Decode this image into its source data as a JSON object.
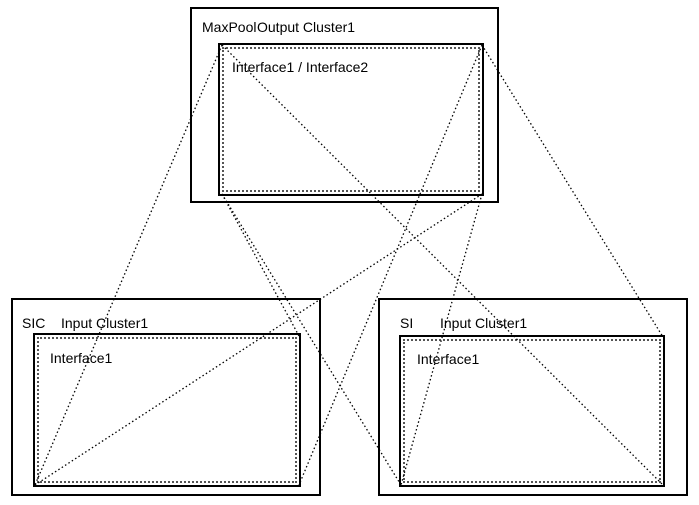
{
  "top_node": {
    "operation": "MaxPool",
    "cluster": "Output Cluster1",
    "interface": "Interface1 / Interface2"
  },
  "left_node": {
    "operation": "SIC",
    "cluster": "Input Cluster1",
    "interface": "Interface1"
  },
  "right_node": {
    "operation": "SI",
    "cluster": "Input Cluster1",
    "interface": "Interface1"
  }
}
